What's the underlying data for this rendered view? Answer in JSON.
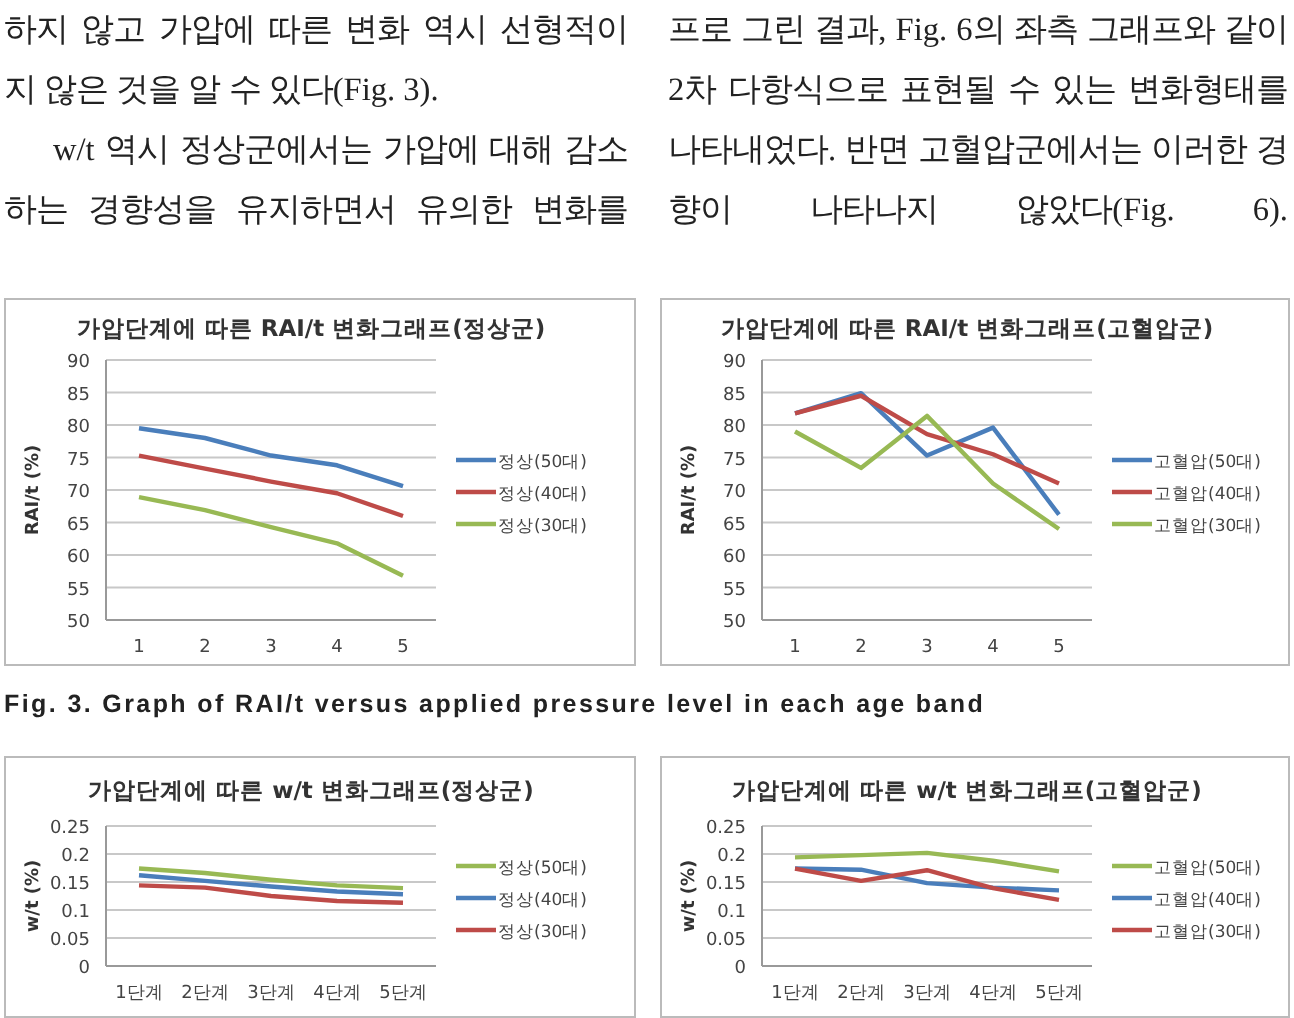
{
  "chart_data": [
    {
      "type": "line",
      "title": "가압단계에 따른 RAI/t 변화그래프(정상군)",
      "ylabel": "RAI/t (%)",
      "categories": [
        "1",
        "2",
        "3",
        "4",
        "5"
      ],
      "ylim": [
        50,
        90
      ],
      "yticks": [
        50,
        55,
        60,
        65,
        70,
        75,
        80,
        85,
        90
      ],
      "grid": "y",
      "legend": "right",
      "marker": "none",
      "line_style": "solid",
      "series": [
        {
          "name": "정상(50대)",
          "color": "#4a7ebb",
          "values": [
            79.5,
            78,
            75.3,
            73.8,
            70.6
          ]
        },
        {
          "name": "정상(40대)",
          "color": "#be4b48",
          "values": [
            75.3,
            73.3,
            71.3,
            69.5,
            66
          ]
        },
        {
          "name": "정상(30대)",
          "color": "#98b954",
          "values": [
            68.9,
            66.9,
            64.3,
            61.8,
            56.8
          ]
        }
      ],
      "annotations": [
        "하지 않고 가압에 따른 변화 역시 선형적이지 않은 것을 알 수 있다(Fig. 3).",
        "w/t 역시 정상군에서는 가압에 대해 감소하는 경향성을 유지하면서 유의한 변화를",
        "Fig. 3. Graph of RAI/t versus applied pressure level in each age band"
      ]
    },
    {
      "type": "line",
      "title": "가압단계에 따른 RAI/t 변화그래프(고혈압군)",
      "ylabel": "RAI/t (%)",
      "categories": [
        "1",
        "2",
        "3",
        "4",
        "5"
      ],
      "ylim": [
        50,
        90
      ],
      "yticks": [
        50,
        55,
        60,
        65,
        70,
        75,
        80,
        85,
        90
      ],
      "grid": "y",
      "legend": "right",
      "marker": "none",
      "line_style": "solid",
      "series": [
        {
          "name": "고혈압(50대)",
          "color": "#4a7ebb",
          "values": [
            81.8,
            84.9,
            75.3,
            79.6,
            66.2
          ]
        },
        {
          "name": "고혈압(40대)",
          "color": "#be4b48",
          "values": [
            81.8,
            84.5,
            78.6,
            75.5,
            71
          ]
        },
        {
          "name": "고혈압(30대)",
          "color": "#98b954",
          "values": [
            79,
            73.4,
            81.4,
            71,
            64
          ]
        }
      ],
      "annotations": [
        "프로 그린 결과, Fig. 6의 좌측 그래프와 같이 2차 다항식으로 표현될 수 있는 변화형태를 나타내었다. 반면 고혈압군에서는 이러한 경향이 나타나지 않았다(Fig. 6)."
      ]
    },
    {
      "type": "line",
      "title": "가압단계에 따른 w/t 변화그래프(정상군)",
      "ylabel": "w/t (%)",
      "categories": [
        "1단계",
        "2단계",
        "3단계",
        "4단계",
        "5단계"
      ],
      "ylim": [
        0,
        0.25
      ],
      "yticks": [
        0,
        0.05,
        0.1,
        0.15,
        0.2,
        0.25
      ],
      "grid": "y",
      "legend": "right",
      "marker": "none",
      "line_style": "solid",
      "series": [
        {
          "name": "정상(50대)",
          "color": "#98b954",
          "values": [
            0.174,
            0.166,
            0.154,
            0.144,
            0.139
          ]
        },
        {
          "name": "정상(40대)",
          "color": "#4a7ebb",
          "values": [
            0.162,
            0.152,
            0.142,
            0.133,
            0.128
          ]
        },
        {
          "name": "정상(30대)",
          "color": "#be4b48",
          "values": [
            0.144,
            0.14,
            0.125,
            0.116,
            0.113
          ]
        }
      ]
    },
    {
      "type": "line",
      "title": "가압단계에 따른 w/t 변화그래프(고혈압군)",
      "ylabel": "w/t (%)",
      "categories": [
        "1단계",
        "2단계",
        "3단계",
        "4단계",
        "5단계"
      ],
      "ylim": [
        0,
        0.25
      ],
      "yticks": [
        0,
        0.05,
        0.1,
        0.15,
        0.2,
        0.25
      ],
      "grid": "y",
      "legend": "right",
      "marker": "none",
      "line_style": "solid",
      "series": [
        {
          "name": "고혈압(50대)",
          "color": "#98b954",
          "values": [
            0.194,
            0.198,
            0.202,
            0.188,
            0.169
          ]
        },
        {
          "name": "고혈압(40대)",
          "color": "#4a7ebb",
          "values": [
            0.174,
            0.172,
            0.148,
            0.14,
            0.135
          ]
        },
        {
          "name": "고혈압(30대)",
          "color": "#be4b48",
          "values": [
            0.174,
            0.152,
            0.171,
            0.139,
            0.118
          ]
        }
      ]
    }
  ]
}
